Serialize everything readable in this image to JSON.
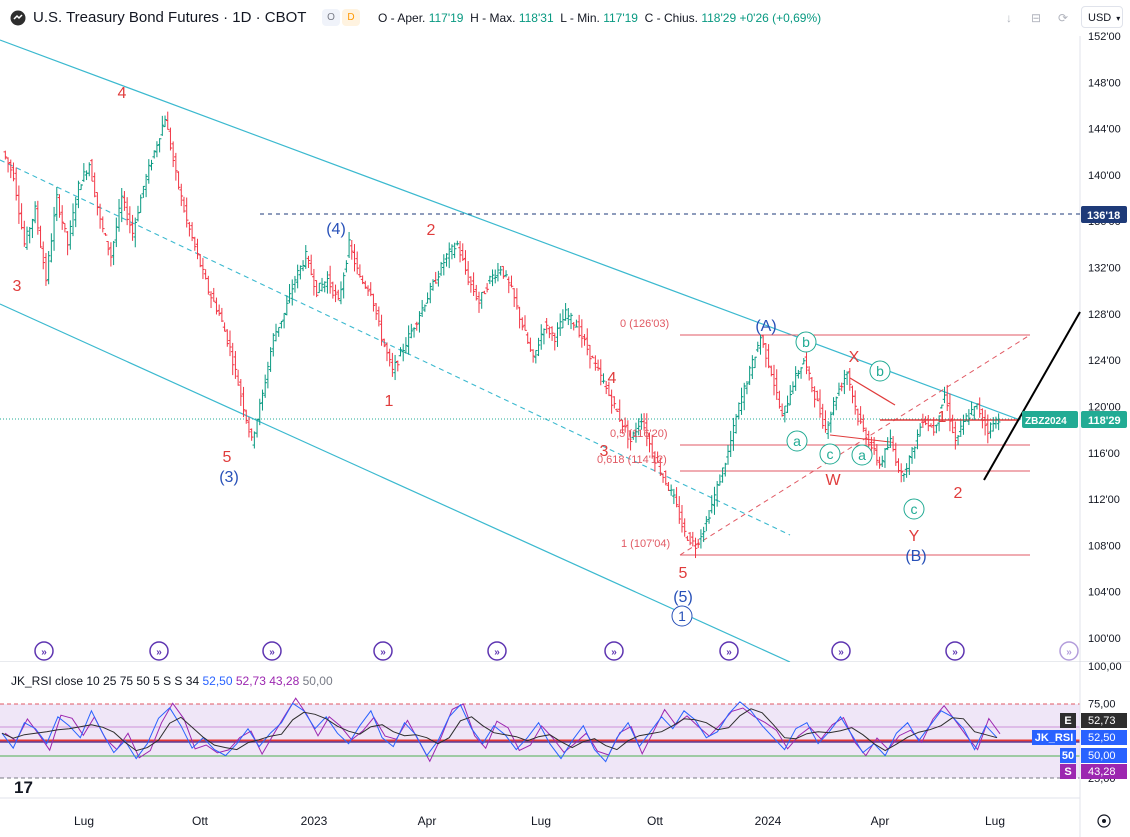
{
  "header": {
    "title": "U.S. Treasury Bond Futures · 1D · CBOT",
    "badge_o": "O",
    "badge_d": "D",
    "ohlc": {
      "o_label": "O - Aper.",
      "o": "117'19",
      "h_label": "H - Max.",
      "h": "118'31",
      "l_label": "L - Min.",
      "l": "117'19",
      "c_label": "C - Chius.",
      "c": "118'29",
      "change": "+0'26 (+0,69%)"
    },
    "currency": "USD"
  },
  "chart_data": [
    {
      "type": "line",
      "title": "U.S. Treasury Bond Futures · 1D · CBOT",
      "ylim": [
        100,
        152
      ],
      "y_ticks": [
        "152'00",
        "148'00",
        "144'00",
        "140'00",
        "136'00",
        "132'00",
        "128'00",
        "124'00",
        "120'00",
        "116'00",
        "112'00",
        "108'00",
        "104'00",
        "100'00"
      ],
      "x_ticks": [
        "Lug",
        "Ott",
        "2023",
        "Apr",
        "Lug",
        "Ott",
        "2024",
        "Apr",
        "Lug"
      ],
      "series": [
        {
          "values": [
            142,
            140,
            134,
            137,
            131,
            138,
            134,
            139,
            141,
            136,
            133,
            138,
            135,
            139,
            142,
            145,
            140,
            136,
            133,
            130,
            128,
            125,
            121,
            117,
            121,
            126,
            128,
            131,
            133,
            130,
            131,
            129,
            134,
            131,
            130,
            126,
            123,
            125,
            127,
            129,
            131,
            133,
            134,
            131,
            129,
            131,
            132,
            130,
            127,
            124,
            127,
            126,
            128,
            127,
            125,
            123,
            121,
            119,
            117,
            119,
            116,
            114,
            112,
            109,
            108,
            110,
            113,
            116,
            120,
            123,
            126,
            123,
            119,
            122,
            124,
            121,
            118,
            121,
            123,
            119,
            117,
            115,
            117,
            114,
            116,
            119,
            118,
            121,
            117,
            119,
            120,
            118,
            119
          ]
        }
      ],
      "price_labels": [
        {
          "text": "136'18",
          "color": "#1e3a78"
        },
        {
          "text": "ZBZ2024",
          "color": "#22ab94"
        },
        {
          "text": "118'29",
          "color": "#22ab94"
        }
      ],
      "annotations": [
        {
          "text": "4",
          "color": "#e03c3c"
        },
        {
          "text": "3",
          "color": "#e03c3c"
        },
        {
          "text": "5",
          "color": "#e03c3c"
        },
        {
          "text": "(3)",
          "color": "#2750b8"
        },
        {
          "text": "(4)",
          "color": "#2750b8"
        },
        {
          "text": "2",
          "color": "#e03c3c"
        },
        {
          "text": "1",
          "color": "#e03c3c"
        },
        {
          "text": "4",
          "color": "#e03c3c"
        },
        {
          "text": "3",
          "color": "#e03c3c"
        },
        {
          "text": "5",
          "color": "#e03c3c"
        },
        {
          "text": "(5)",
          "color": "#2750b8"
        },
        {
          "text": "1",
          "color": "#2750b8"
        },
        {
          "text": "(A)",
          "color": "#2750b8"
        },
        {
          "text": "b",
          "color": "#22ab94"
        },
        {
          "text": "X",
          "color": "#e03c3c"
        },
        {
          "text": "b",
          "color": "#22ab94"
        },
        {
          "text": "a",
          "color": "#22ab94"
        },
        {
          "text": "c",
          "color": "#22ab94"
        },
        {
          "text": "a",
          "color": "#22ab94"
        },
        {
          "text": "W",
          "color": "#e03c3c"
        },
        {
          "text": "1",
          "color": "#e03c3c"
        },
        {
          "text": "2",
          "color": "#e03c3c"
        },
        {
          "text": "c",
          "color": "#22ab94"
        },
        {
          "text": "Y",
          "color": "#e03c3c"
        },
        {
          "text": "(B)",
          "color": "#2750b8"
        }
      ],
      "fib_levels": [
        {
          "label": "0 (126'03)"
        },
        {
          "label": "0,5 (116'20)"
        },
        {
          "label": "0,618 (114'12)"
        },
        {
          "label": "1 (107'04)"
        }
      ]
    },
    {
      "type": "line",
      "title": "JK_RSI close 10 25 75 50 5 S S 34",
      "ylim": [
        25,
        100
      ],
      "y_ticks": [
        "100,00",
        "75,00",
        "25,00"
      ],
      "legend_values": [
        "52,50",
        "52,73",
        "43,28",
        "50,00"
      ],
      "series": [
        {
          "name": "RSI",
          "values": [
            55,
            45,
            62,
            58,
            48,
            66,
            60,
            52,
            70,
            55,
            42,
            50,
            38,
            48,
            65,
            72,
            60,
            45,
            52,
            44,
            40,
            48,
            58,
            46,
            55,
            62,
            75,
            70,
            58,
            66,
            55,
            48,
            60,
            70,
            52,
            46,
            62,
            54,
            40,
            50,
            66,
            74,
            58,
            48,
            60,
            54,
            44,
            52,
            62,
            48,
            38,
            50,
            60,
            44,
            36,
            52,
            62,
            46,
            56,
            66,
            58,
            70,
            64,
            52,
            56,
            68,
            76,
            70,
            60,
            52,
            44,
            58,
            62,
            48,
            56,
            66,
            54,
            42,
            48,
            40,
            55,
            62,
            50,
            60,
            70,
            66,
            58,
            44,
            60,
            52
          ]
        }
      ],
      "side_labels": [
        {
          "tag": "E",
          "value": "52,73",
          "color": "#2e2e2e"
        },
        {
          "tag": "JK_RSI",
          "value": "52,50",
          "color": "#2962ff"
        },
        {
          "tag": "50",
          "value": "50,00",
          "color": "#2962ff"
        },
        {
          "tag": "S",
          "value": "43,28",
          "color": "#9c27b0"
        }
      ]
    }
  ],
  "rsi_legend": {
    "name": "JK_RSI close 10 25 75 50 5 S S 34",
    "v1": "52,50",
    "v2": "52,73",
    "v3": "43,28",
    "v4": "50,00"
  },
  "logo": "17",
  "colors": {
    "up": "#089981",
    "down": "#f23645",
    "channel": "#3bb9cf",
    "fib": "#e15a64",
    "rsi_band": "#efe6f7"
  }
}
